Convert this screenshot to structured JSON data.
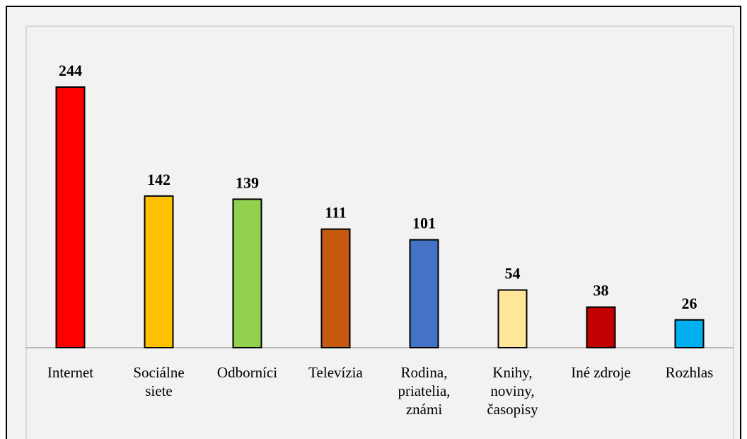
{
  "chart_data": {
    "type": "bar",
    "categories": [
      "Internet",
      "Sociálne\nsiete",
      "Odborníci",
      "Televízia",
      "Rodina,\npriatelia,\nznámi",
      "Knihy,\nnoviny,\nčasopisy",
      "Iné zdroje",
      "Rozhlas"
    ],
    "values": [
      244,
      142,
      139,
      111,
      101,
      54,
      38,
      26
    ],
    "colors": [
      "#ff0000",
      "#ffc000",
      "#92d050",
      "#c55a11",
      "#4472c4",
      "#ffe699",
      "#c00000",
      "#00b0f0"
    ]
  }
}
